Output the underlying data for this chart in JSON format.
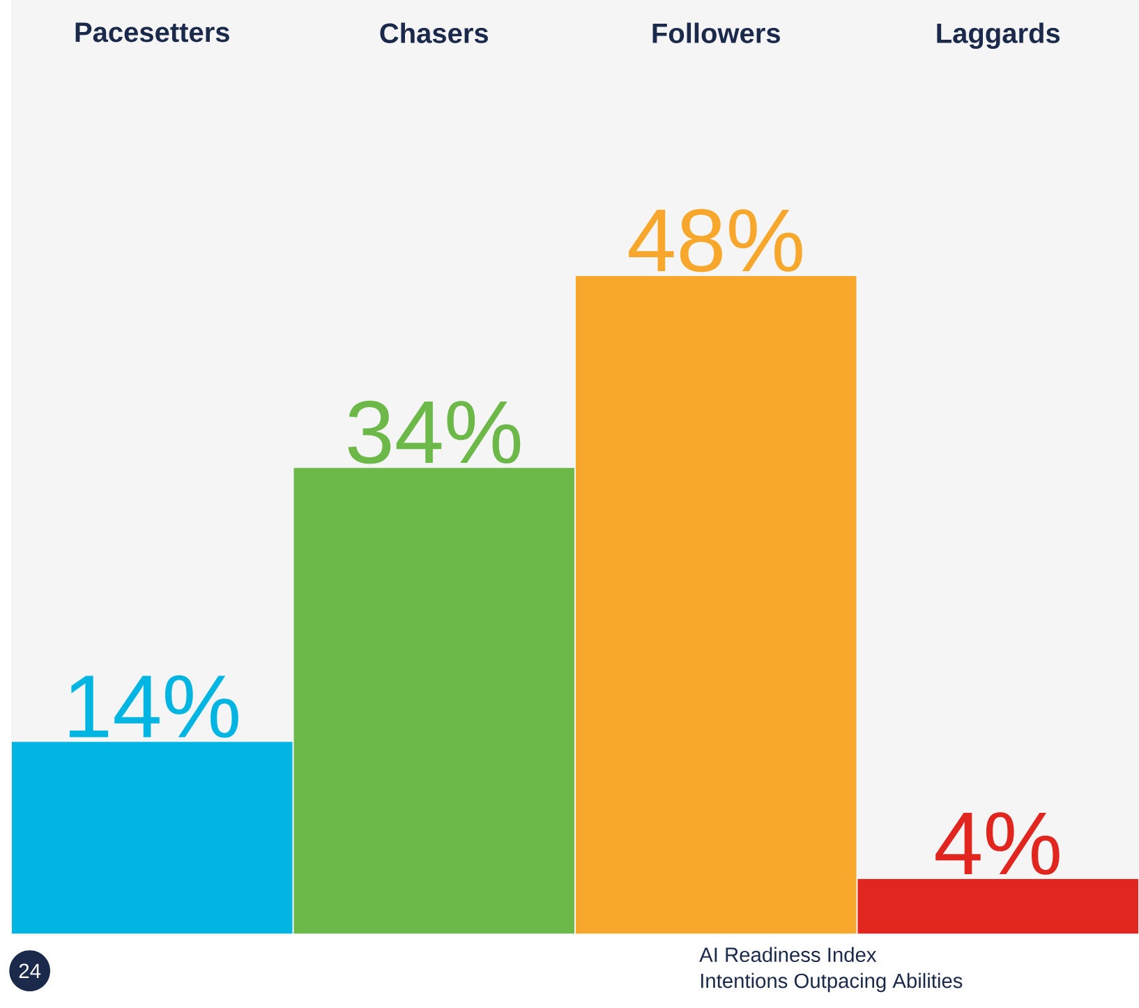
{
  "chart_data": {
    "type": "bar",
    "categories": [
      "Pacesetters",
      "Chasers",
      "Followers",
      "Laggards"
    ],
    "values": [
      14,
      34,
      48,
      4
    ],
    "value_labels": [
      "14%",
      "34%",
      "48%",
      "4%"
    ],
    "colors": [
      "#00b5e2",
      "#6cb94a",
      "#f7a82c",
      "#e0261e"
    ],
    "annotations": [
      "24",
      "AI Readiness Index",
      "Intentions Outpacing Abilities"
    ]
  }
}
